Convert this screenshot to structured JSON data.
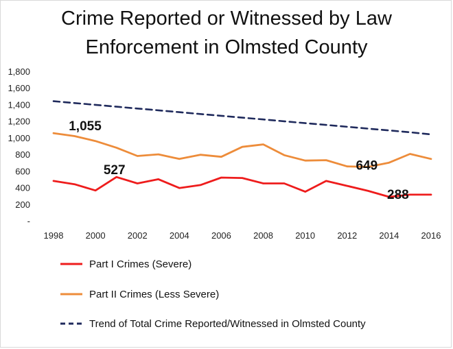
{
  "chart_data": {
    "type": "line",
    "title": [
      "Crime Reported or Witnessed by Law",
      "Enforcement in Olmsted County"
    ],
    "xlabel": "",
    "ylabel": "",
    "x": [
      1998,
      1999,
      2000,
      2001,
      2002,
      2003,
      2004,
      2005,
      2006,
      2007,
      2008,
      2009,
      2010,
      2011,
      2012,
      2013,
      2014,
      2015,
      2016
    ],
    "x_ticks": [
      1998,
      2000,
      2002,
      2004,
      2006,
      2008,
      2010,
      2012,
      2014,
      2016
    ],
    "y_ticks": [
      "-",
      "200",
      "400",
      "600",
      "800",
      "1,000",
      "1,200",
      "1,400",
      "1,600",
      "1,800"
    ],
    "ylim": [
      0,
      1800
    ],
    "grid": false,
    "legend_position": "bottom",
    "series": [
      {
        "name": "Part I Crimes (Severe)",
        "color": "#ee1c1c",
        "style": "solid",
        "values": [
          480,
          440,
          365,
          527,
          450,
          500,
          395,
          430,
          520,
          515,
          450,
          450,
          350,
          480,
          420,
          360,
          288,
          315,
          315
        ]
      },
      {
        "name": "Part II Crimes (Less Severe)",
        "color": "#ed8c3a",
        "style": "solid",
        "values": [
          1055,
          1020,
          960,
          880,
          780,
          800,
          745,
          795,
          770,
          890,
          920,
          790,
          725,
          730,
          655,
          649,
          700,
          805,
          745
        ]
      },
      {
        "name": "Trend of Total Crime Reported/Witnessed in Olmsted County",
        "color": "#1f2a5c",
        "style": "dashed",
        "values": [
          1440,
          1418,
          1396,
          1374,
          1352,
          1330,
          1308,
          1286,
          1264,
          1242,
          1220,
          1198,
          1176,
          1154,
          1132,
          1110,
          1088,
          1066,
          1040
        ]
      }
    ],
    "annotations": [
      {
        "text": "1,055",
        "series": 1,
        "index": 0
      },
      {
        "text": "527",
        "series": 0,
        "index": 3
      },
      {
        "text": "649",
        "series": 1,
        "index": 15
      },
      {
        "text": "288",
        "series": 0,
        "index": 16
      }
    ]
  }
}
